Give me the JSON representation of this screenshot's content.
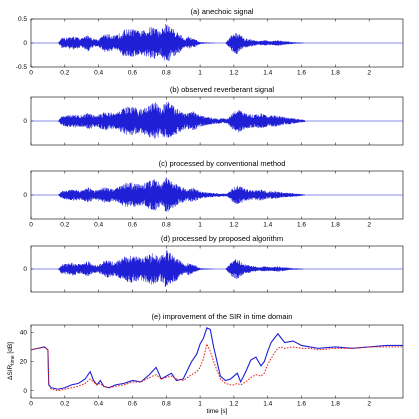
{
  "chart_data": [
    {
      "type": "line",
      "title": "(a) anechoic signal",
      "xlim": [
        0,
        2.2
      ],
      "ylim": [
        -0.5,
        0.5
      ],
      "xticks": [
        0,
        0.2,
        0.4,
        0.6,
        0.8,
        1,
        1.2,
        1.4,
        1.6,
        1.8,
        2
      ],
      "yticks": [
        0.5,
        0,
        -0.5
      ],
      "signal_duration": 1.62,
      "envelope": {
        "t": [
          0.0,
          0.16,
          0.18,
          0.25,
          0.3,
          0.34,
          0.36,
          0.4,
          0.44,
          0.5,
          0.55,
          0.6,
          0.65,
          0.7,
          0.73,
          0.76,
          0.8,
          0.84,
          0.88,
          0.91,
          0.93,
          0.97,
          1.0,
          1.1,
          1.15,
          1.19,
          1.22,
          1.26,
          1.3,
          1.35,
          1.38,
          1.42,
          1.46,
          1.5,
          1.55,
          1.6,
          1.62,
          2.2
        ],
        "amp": [
          0.0,
          0.0,
          0.1,
          0.14,
          0.1,
          0.18,
          0.1,
          0.08,
          0.2,
          0.15,
          0.28,
          0.3,
          0.24,
          0.33,
          0.36,
          0.25,
          0.42,
          0.3,
          0.2,
          0.08,
          0.14,
          0.08,
          0.02,
          0.0,
          0.0,
          0.18,
          0.24,
          0.1,
          0.08,
          0.04,
          0.06,
          0.04,
          0.06,
          0.04,
          0.02,
          0.01,
          0.0,
          0.0
        ]
      }
    },
    {
      "type": "line",
      "title": "(b) observed reverberant signal",
      "xlim": [
        0,
        2.2
      ],
      "ylim": [
        -0.5,
        0.5
      ],
      "xticks": [
        0,
        0.2,
        0.4,
        0.6,
        0.8,
        1,
        1.2,
        1.4,
        1.6,
        1.8,
        2
      ],
      "yticks": [
        0
      ],
      "signal_duration": 1.62,
      "envelope": {
        "t": [
          0.0,
          0.16,
          0.18,
          0.25,
          0.3,
          0.34,
          0.38,
          0.44,
          0.5,
          0.56,
          0.6,
          0.65,
          0.7,
          0.74,
          0.77,
          0.8,
          0.84,
          0.88,
          0.92,
          0.96,
          1.0,
          1.05,
          1.1,
          1.16,
          1.2,
          1.23,
          1.27,
          1.32,
          1.36,
          1.4,
          1.45,
          1.5,
          1.55,
          1.62,
          2.2
        ],
        "amp": [
          0.0,
          0.0,
          0.1,
          0.14,
          0.12,
          0.18,
          0.12,
          0.2,
          0.16,
          0.3,
          0.3,
          0.25,
          0.34,
          0.4,
          0.26,
          0.46,
          0.32,
          0.24,
          0.16,
          0.2,
          0.12,
          0.08,
          0.06,
          0.05,
          0.2,
          0.24,
          0.16,
          0.14,
          0.16,
          0.12,
          0.12,
          0.08,
          0.06,
          0.02,
          0.0
        ]
      }
    },
    {
      "type": "line",
      "title": "(c) processed by conventional method",
      "xlim": [
        0,
        2.2
      ],
      "ylim": [
        -0.5,
        0.5
      ],
      "xticks": [
        0,
        0.2,
        0.4,
        0.6,
        0.8,
        1,
        1.2,
        1.4,
        1.6,
        1.8,
        2
      ],
      "yticks": [
        0
      ],
      "signal_duration": 1.62,
      "envelope": {
        "t": [
          0.0,
          0.16,
          0.18,
          0.25,
          0.3,
          0.34,
          0.38,
          0.44,
          0.5,
          0.56,
          0.6,
          0.65,
          0.7,
          0.74,
          0.77,
          0.8,
          0.84,
          0.88,
          0.92,
          0.96,
          1.0,
          1.05,
          1.1,
          1.16,
          1.2,
          1.23,
          1.27,
          1.32,
          1.36,
          1.4,
          1.45,
          1.5,
          1.55,
          1.62,
          2.2
        ],
        "amp": [
          0.0,
          0.0,
          0.08,
          0.12,
          0.1,
          0.16,
          0.1,
          0.17,
          0.14,
          0.26,
          0.26,
          0.22,
          0.3,
          0.34,
          0.22,
          0.38,
          0.27,
          0.2,
          0.12,
          0.15,
          0.08,
          0.05,
          0.04,
          0.03,
          0.17,
          0.2,
          0.12,
          0.1,
          0.12,
          0.08,
          0.08,
          0.05,
          0.04,
          0.01,
          0.0
        ]
      }
    },
    {
      "type": "line",
      "title": "(d) processed by proposed algorithm",
      "xlim": [
        0,
        2.2
      ],
      "ylim": [
        -0.5,
        0.5
      ],
      "xticks": [
        0,
        0.2,
        0.4,
        0.6,
        0.8,
        1,
        1.2,
        1.4,
        1.6,
        1.8,
        2
      ],
      "yticks": [
        0
      ],
      "signal_duration": 1.62,
      "envelope": {
        "t": [
          0.0,
          0.16,
          0.18,
          0.25,
          0.3,
          0.34,
          0.36,
          0.4,
          0.44,
          0.5,
          0.55,
          0.6,
          0.65,
          0.7,
          0.73,
          0.76,
          0.8,
          0.84,
          0.88,
          0.91,
          0.93,
          0.97,
          1.0,
          1.1,
          1.15,
          1.19,
          1.22,
          1.26,
          1.3,
          1.35,
          1.38,
          1.42,
          1.46,
          1.5,
          1.55,
          1.6,
          1.62,
          2.2
        ],
        "amp": [
          0.0,
          0.0,
          0.1,
          0.14,
          0.1,
          0.18,
          0.1,
          0.08,
          0.2,
          0.15,
          0.28,
          0.3,
          0.24,
          0.33,
          0.36,
          0.25,
          0.42,
          0.3,
          0.2,
          0.08,
          0.14,
          0.08,
          0.02,
          0.0,
          0.0,
          0.18,
          0.24,
          0.1,
          0.08,
          0.04,
          0.06,
          0.04,
          0.06,
          0.04,
          0.02,
          0.01,
          0.0,
          0.0
        ]
      }
    },
    {
      "type": "line",
      "title": "(e) improvement of the SIR in time domain",
      "xlabel": "time [s]",
      "ylabel": "ΔSIR_time [dB]",
      "xlim": [
        0,
        2.2
      ],
      "ylim": [
        -5,
        45
      ],
      "xticks": [
        0,
        0.2,
        0.4,
        0.6,
        0.8,
        1,
        1.2,
        1.4,
        1.6,
        1.8,
        2
      ],
      "yticks": [
        0,
        20,
        40
      ],
      "series": [
        {
          "color": "#1f1fd6",
          "style": "solid",
          "x": [
            0,
            0.04,
            0.08,
            0.1,
            0.105,
            0.12,
            0.16,
            0.2,
            0.24,
            0.28,
            0.32,
            0.35,
            0.37,
            0.39,
            0.41,
            0.43,
            0.46,
            0.5,
            0.55,
            0.6,
            0.65,
            0.7,
            0.74,
            0.77,
            0.8,
            0.83,
            0.86,
            0.9,
            0.95,
            0.98,
            1.0,
            1.02,
            1.04,
            1.06,
            1.08,
            1.1,
            1.12,
            1.15,
            1.18,
            1.2,
            1.22,
            1.24,
            1.27,
            1.3,
            1.33,
            1.36,
            1.38,
            1.4,
            1.42,
            1.44,
            1.46,
            1.48,
            1.5,
            1.55,
            1.6,
            1.65,
            1.7,
            1.8,
            1.9,
            2.0,
            2.1,
            2.2
          ],
          "y": [
            28,
            29,
            30,
            28,
            4,
            2,
            1,
            2,
            4,
            5,
            8,
            13,
            7,
            4,
            7,
            3,
            2,
            4,
            5,
            7,
            6,
            11,
            16,
            8,
            10,
            12,
            7,
            8,
            20,
            25,
            32,
            36,
            43,
            42,
            30,
            20,
            10,
            7,
            8,
            10,
            12,
            6,
            13,
            21,
            23,
            17,
            20,
            27,
            33,
            36,
            39,
            36,
            33,
            34,
            31,
            30,
            29,
            30,
            29,
            30,
            31,
            31
          ]
        },
        {
          "color": "#e0201a",
          "style": "dotted",
          "x": [
            0,
            0.04,
            0.08,
            0.1,
            0.105,
            0.12,
            0.16,
            0.2,
            0.24,
            0.28,
            0.32,
            0.35,
            0.37,
            0.39,
            0.41,
            0.43,
            0.46,
            0.5,
            0.55,
            0.6,
            0.65,
            0.7,
            0.74,
            0.77,
            0.8,
            0.83,
            0.86,
            0.9,
            0.95,
            0.98,
            1.0,
            1.02,
            1.04,
            1.06,
            1.08,
            1.1,
            1.12,
            1.15,
            1.18,
            1.2,
            1.22,
            1.24,
            1.27,
            1.3,
            1.33,
            1.36,
            1.38,
            1.4,
            1.42,
            1.44,
            1.46,
            1.48,
            1.5,
            1.55,
            1.6,
            1.65,
            1.7,
            1.8,
            1.9,
            2.0,
            2.1,
            2.2
          ],
          "y": [
            28,
            29,
            30,
            28,
            4,
            1,
            0,
            1,
            2,
            3,
            5,
            8,
            6,
            4,
            5,
            3,
            2,
            3,
            4,
            6,
            6,
            9,
            11,
            8,
            9,
            10,
            8,
            7,
            11,
            13,
            16,
            22,
            32,
            27,
            20,
            14,
            8,
            5,
            4,
            4,
            5,
            4,
            6,
            9,
            11,
            10,
            12,
            18,
            22,
            26,
            29,
            30,
            29,
            30,
            29,
            29,
            28,
            29,
            29,
            30,
            30,
            30
          ]
        }
      ]
    }
  ]
}
